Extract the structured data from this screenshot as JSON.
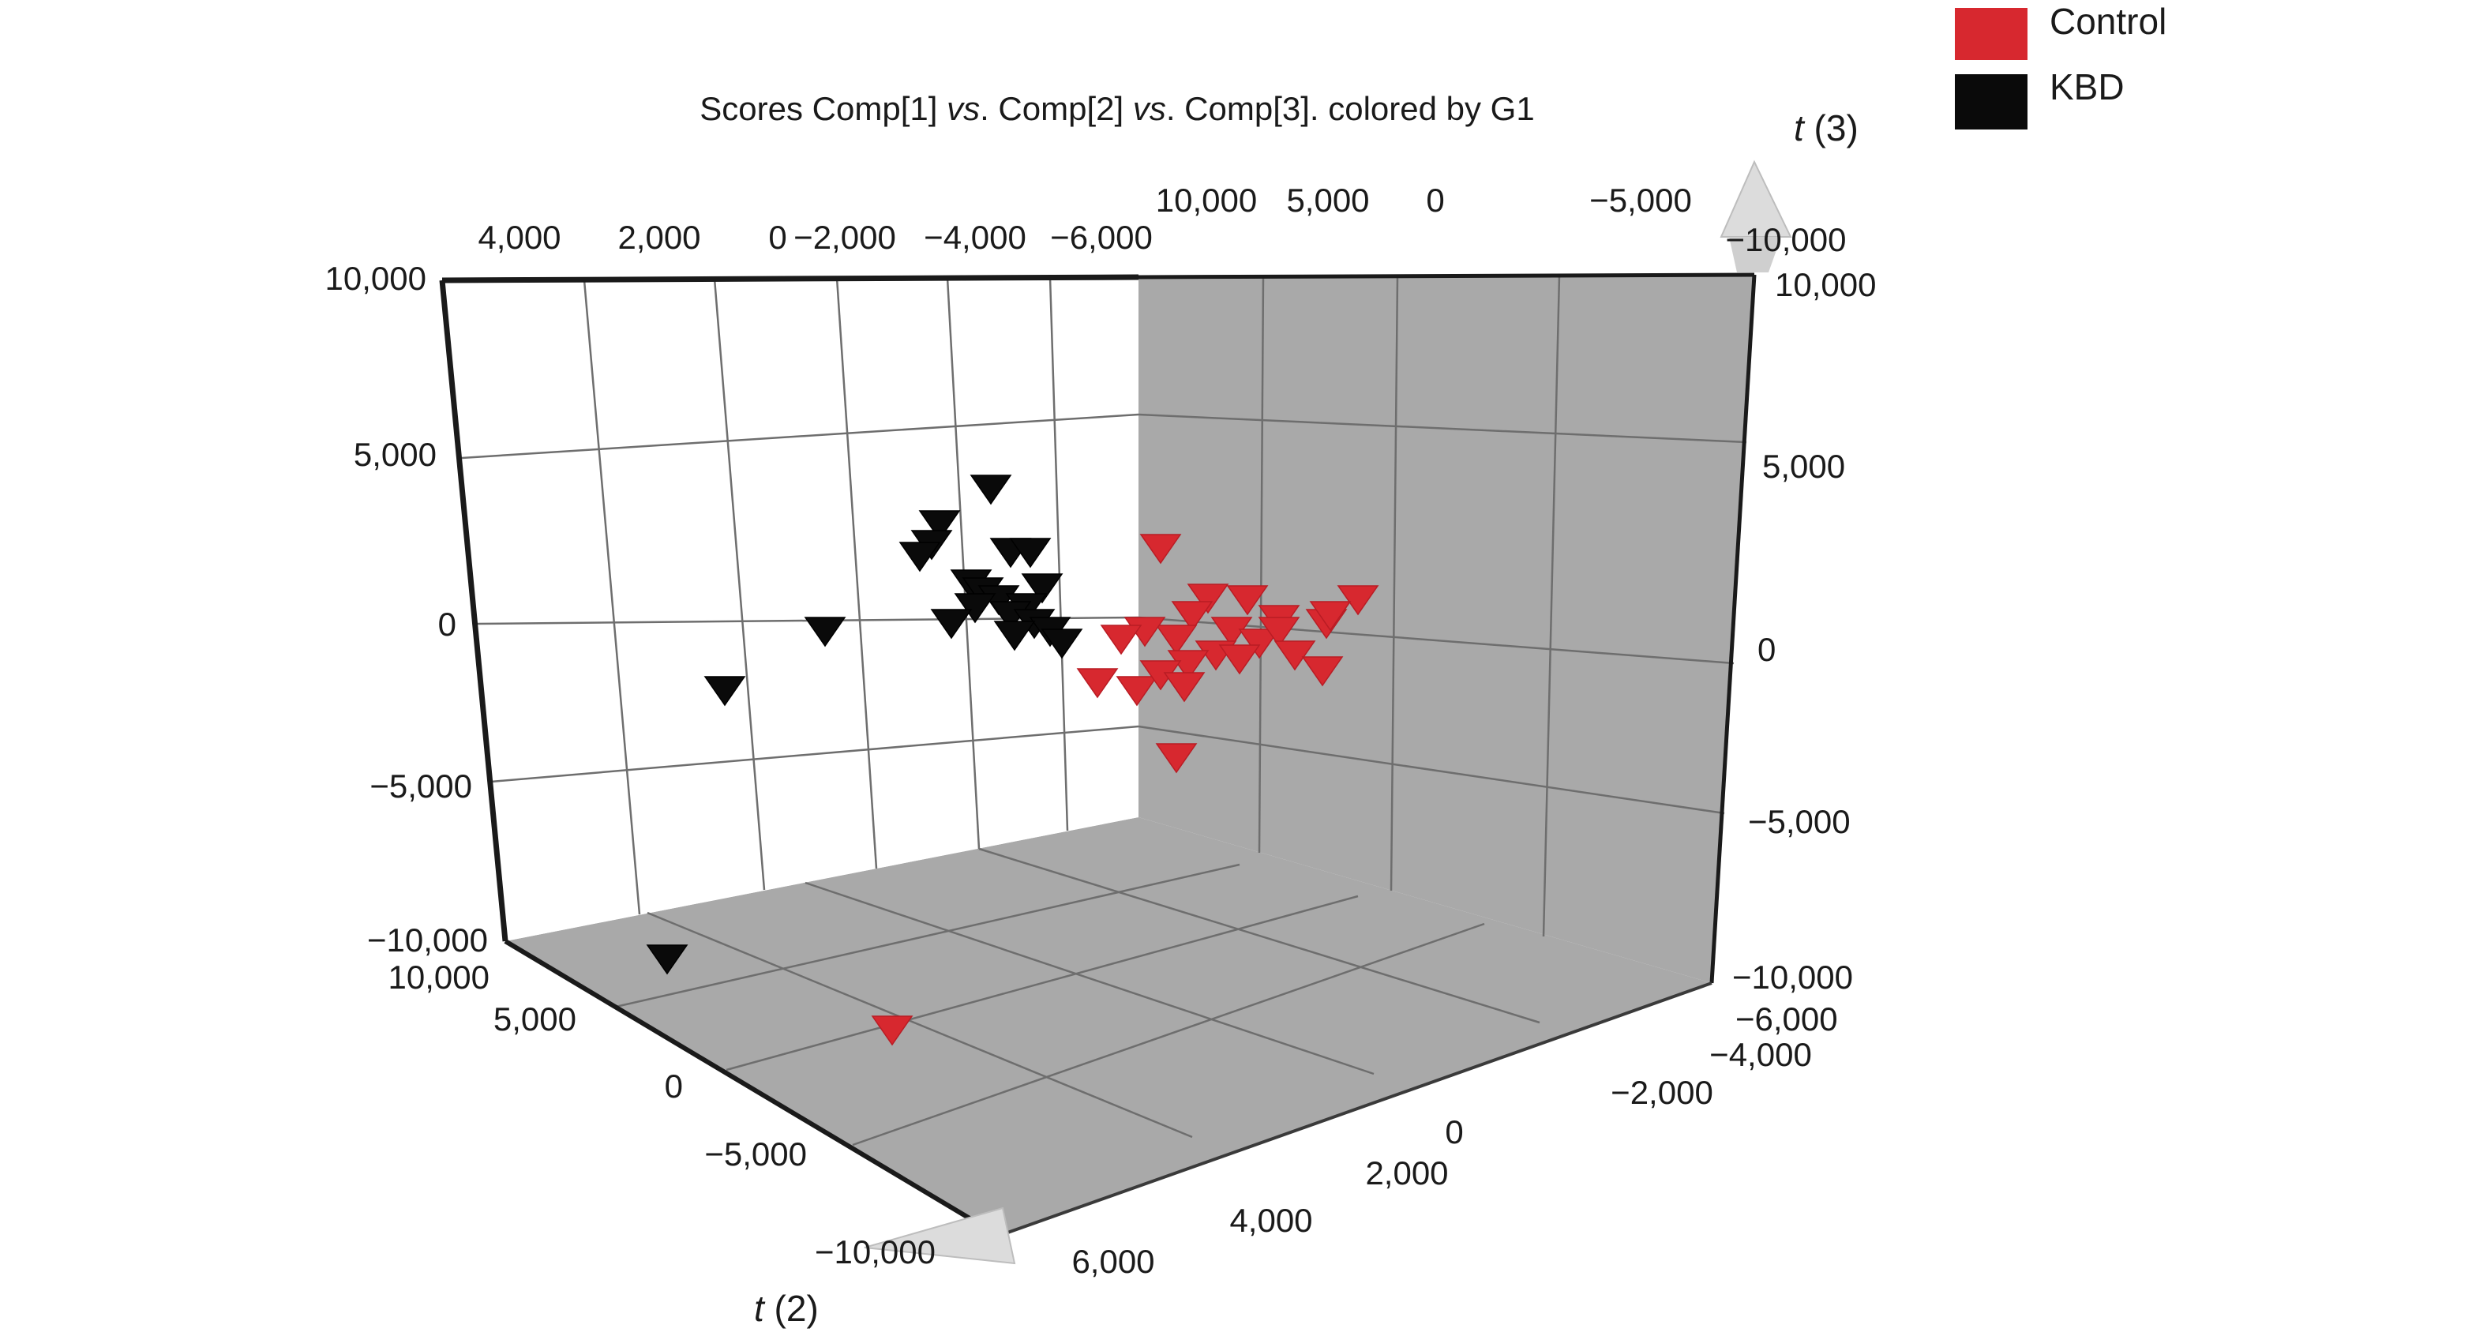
{
  "chart_data": {
    "type": "scatter",
    "title_parts": [
      {
        "text": "Scores Comp[1] ",
        "italic": false
      },
      {
        "text": "vs",
        "italic": true
      },
      {
        "text": ". Comp[2] ",
        "italic": false
      },
      {
        "text": "vs",
        "italic": true
      },
      {
        "text": ". Comp[3]. colored by G1",
        "italic": false
      }
    ],
    "axis_t2": {
      "name_italic": "t",
      "name_rest": " (2)",
      "range": [
        -10000,
        10000
      ]
    },
    "axis_t3": {
      "name_italic": "t",
      "name_rest": " (3)",
      "range": [
        -10000,
        10000
      ]
    },
    "axis_t1": {
      "range": [
        -6000,
        6000
      ]
    },
    "ticks": {
      "left_vertical": [
        "10,000",
        "5,000",
        "0",
        "−5,000",
        "−10,000"
      ],
      "right_vertical": [
        "10,000",
        "5,000",
        "0",
        "−5,000",
        "−10,000"
      ],
      "top_left_t1": [
        "4,000",
        "2,000",
        "0",
        "−2,000",
        "−4,000",
        "−6,000"
      ],
      "top_right_t2": [
        "10,000",
        "5,000",
        "0",
        "−5,000",
        "−10,000"
      ],
      "bottom_left_t2": [
        "10,000",
        "5,000",
        "0",
        "−5,000",
        "−10,000"
      ],
      "bottom_right_t1": [
        "−6,000",
        "−4,000",
        "−2,000",
        "0",
        "2,000",
        "4,000",
        "6,000"
      ]
    },
    "legend": [
      {
        "label": "Control",
        "color": "#d7282f"
      },
      {
        "label": "KBD",
        "color": "#0a0a0a"
      }
    ],
    "series": [
      {
        "name": "Control",
        "color": "#d7282f",
        "marker": "triangle-down",
        "points_projected": [
          [
            1470,
            695
          ],
          [
            1530,
            758
          ],
          [
            1580,
            760
          ],
          [
            1620,
            785
          ],
          [
            1510,
            780
          ],
          [
            1560,
            800
          ],
          [
            1490,
            810
          ],
          [
            1540,
            830
          ],
          [
            1505,
            842
          ],
          [
            1450,
            800
          ],
          [
            1420,
            810
          ],
          [
            1390,
            865
          ],
          [
            1440,
            875
          ],
          [
            1470,
            855
          ],
          [
            1500,
            870
          ],
          [
            1595,
            815
          ],
          [
            1570,
            835
          ],
          [
            1620,
            800
          ],
          [
            1640,
            830
          ],
          [
            1680,
            790
          ],
          [
            1720,
            760
          ],
          [
            1685,
            780
          ],
          [
            1675,
            850
          ],
          [
            1490,
            960
          ],
          [
            1130,
            1305
          ]
        ]
      },
      {
        "name": "KBD",
        "color": "#0a0a0a",
        "marker": "triangle-down",
        "points_projected": [
          [
            1255,
            620
          ],
          [
            1190,
            665
          ],
          [
            1180,
            690
          ],
          [
            1165,
            705
          ],
          [
            1280,
            700
          ],
          [
            1305,
            700
          ],
          [
            1230,
            740
          ],
          [
            1245,
            750
          ],
          [
            1265,
            760
          ],
          [
            1320,
            745
          ],
          [
            1300,
            770
          ],
          [
            1280,
            780
          ],
          [
            1310,
            790
          ],
          [
            1330,
            800
          ],
          [
            1345,
            815
          ],
          [
            1285,
            805
          ],
          [
            1235,
            770
          ],
          [
            1205,
            790
          ],
          [
            1045,
            800
          ],
          [
            918,
            875
          ],
          [
            845,
            1215
          ]
        ]
      }
    ]
  }
}
